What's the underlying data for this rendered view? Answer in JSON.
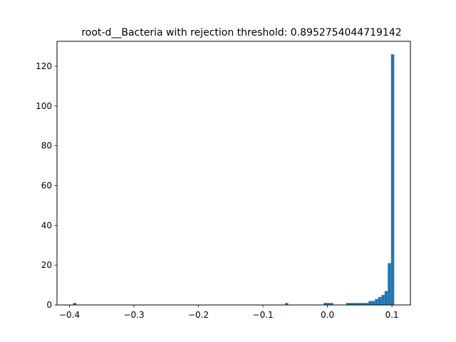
{
  "chart_data": {
    "type": "bar",
    "title": "root-d__Bacteria with rejection threshold: 0.8952754044719142",
    "xlabel": "",
    "ylabel": "",
    "xlim": [
      -0.4194,
      0.1286
    ],
    "ylim": [
      0,
      132.5
    ],
    "grid": false,
    "bar_color": "#1f77b4",
    "bin_edges_start": -0.3945,
    "bin_width": 0.00498,
    "counts": [
      1,
      0,
      0,
      0,
      0,
      0,
      0,
      0,
      0,
      0,
      0,
      0,
      0,
      0,
      0,
      0,
      0,
      0,
      0,
      0,
      0,
      0,
      0,
      0,
      0,
      0,
      0,
      0,
      0,
      0,
      0,
      0,
      0,
      0,
      0,
      0,
      0,
      0,
      0,
      0,
      0,
      0,
      0,
      0,
      0,
      0,
      0,
      0,
      0,
      0,
      0,
      0,
      0,
      0,
      0,
      0,
      0,
      0,
      0,
      0,
      0,
      0,
      0,
      0,
      0,
      0,
      1,
      0,
      0,
      0,
      0,
      0,
      0,
      0,
      0,
      0,
      0,
      0,
      1,
      1,
      1,
      0,
      0,
      0,
      0,
      1,
      1,
      1,
      1,
      1,
      1,
      1,
      2,
      2,
      3,
      4,
      5,
      7,
      21,
      126
    ],
    "xticks": [
      -0.4,
      -0.3,
      -0.2,
      -0.1,
      0.0,
      0.1
    ],
    "xtick_labels": [
      "−0.4",
      "−0.3",
      "−0.2",
      "−0.1",
      "0.0",
      "0.1"
    ],
    "yticks": [
      0,
      20,
      40,
      60,
      80,
      100,
      120
    ],
    "ytick_labels": [
      "0",
      "20",
      "40",
      "60",
      "80",
      "100",
      "120"
    ]
  }
}
